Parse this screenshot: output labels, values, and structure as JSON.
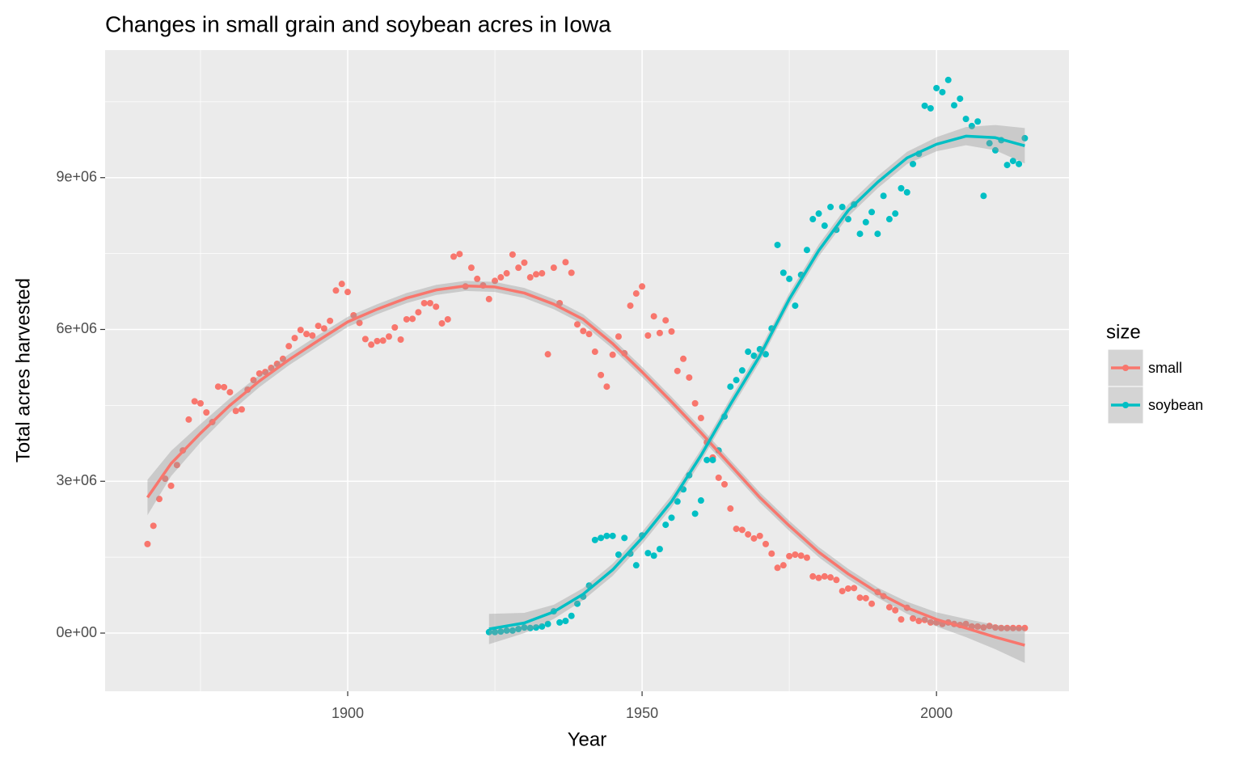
{
  "chart_data": {
    "type": "scatter",
    "title": "Changes in small grain and soybean acres in Iowa",
    "x_label": "Year",
    "y_label": "Total acres harvested",
    "legend_title": "size",
    "legend_position": "right",
    "grid": true,
    "xlim": [
      1858.8,
      2022.5
    ],
    "xticks": [
      1900,
      1950,
      2000
    ],
    "x_minor_ticks": [
      1875,
      1925,
      1975
    ],
    "ylim": [
      -1150000.0,
      11520000.0
    ],
    "yticks": [
      {
        "value": 0,
        "label": "0e+00"
      },
      {
        "value": 3000000.0,
        "label": "3e+06"
      },
      {
        "value": 6000000.0,
        "label": "6e+06"
      },
      {
        "value": 9000000.0,
        "label": "9e+06"
      }
    ],
    "y_minor_ticks": [
      1500000.0,
      4500000.0,
      7500000.0,
      10500000.0
    ],
    "series": [
      {
        "name": "small",
        "color": "#F8766D",
        "x": [
          1866,
          1867,
          1868,
          1869,
          1870,
          1871,
          1872,
          1873,
          1874,
          1875,
          1876,
          1877,
          1878,
          1879,
          1880,
          1881,
          1882,
          1883,
          1884,
          1885,
          1886,
          1887,
          1888,
          1889,
          1890,
          1891,
          1892,
          1893,
          1894,
          1895,
          1896,
          1897,
          1898,
          1899,
          1900,
          1901,
          1902,
          1903,
          1904,
          1905,
          1906,
          1907,
          1908,
          1909,
          1910,
          1911,
          1912,
          1913,
          1914,
          1915,
          1916,
          1917,
          1918,
          1919,
          1920,
          1921,
          1922,
          1923,
          1924,
          1925,
          1926,
          1927,
          1928,
          1929,
          1930,
          1931,
          1932,
          1933,
          1934,
          1935,
          1936,
          1937,
          1938,
          1939,
          1940,
          1941,
          1942,
          1943,
          1944,
          1945,
          1946,
          1947,
          1948,
          1949,
          1950,
          1951,
          1952,
          1953,
          1954,
          1955,
          1956,
          1957,
          1958,
          1959,
          1960,
          1961,
          1962,
          1963,
          1964,
          1965,
          1966,
          1967,
          1968,
          1969,
          1970,
          1971,
          1972,
          1973,
          1974,
          1975,
          1976,
          1977,
          1978,
          1979,
          1980,
          1981,
          1982,
          1983,
          1984,
          1985,
          1986,
          1987,
          1988,
          1989,
          1990,
          1991,
          1992,
          1993,
          1994,
          1995,
          1996,
          1997,
          1998,
          1999,
          2000,
          2001,
          2002,
          2003,
          2004,
          2005,
          2006,
          2007,
          2008,
          2009,
          2010,
          2011,
          2012,
          2013,
          2014,
          2015
        ],
        "values": [
          1760000.0,
          2120000.0,
          2650000.0,
          3050000.0,
          2910000.0,
          3320000.0,
          3610000.0,
          4220000.0,
          4580000.0,
          4540000.0,
          4360000.0,
          4170000.0,
          4870000.0,
          4860000.0,
          4760000.0,
          4390000.0,
          4420000.0,
          4810000.0,
          5000000.0,
          5130000.0,
          5160000.0,
          5240000.0,
          5320000.0,
          5420000.0,
          5670000.0,
          5830000.0,
          5990000.0,
          5910000.0,
          5880000.0,
          6070000.0,
          6020000.0,
          6170000.0,
          6770000.0,
          6900000.0,
          6740000.0,
          6280000.0,
          6130000.0,
          5810000.0,
          5700000.0,
          5770000.0,
          5780000.0,
          5860000.0,
          6040000.0,
          5800000.0,
          6200000.0,
          6210000.0,
          6340000.0,
          6520000.0,
          6520000.0,
          6450000.0,
          6120000.0,
          6200000.0,
          7440000.0,
          7490000.0,
          6850000.0,
          7220000.0,
          7000000.0,
          6870000.0,
          6600000.0,
          6960000.0,
          7030000.0,
          7110000.0,
          7480000.0,
          7220000.0,
          7320000.0,
          7030000.0,
          7090000.0,
          7110000.0,
          5510000.0,
          7220000.0,
          6520000.0,
          7330000.0,
          7120000.0,
          6100000.0,
          5970000.0,
          5910000.0,
          5560000.0,
          5100000.0,
          4870000.0,
          5500000.0,
          5860000.0,
          5530000.0,
          6470000.0,
          6710000.0,
          6850000.0,
          5880000.0,
          6260000.0,
          5930000.0,
          6180000.0,
          5960000.0,
          5180000.0,
          5420000.0,
          5050000.0,
          4540000.0,
          4250000.0,
          3770000.0,
          3470000.0,
          3070000.0,
          2940000.0,
          2460000.0,
          2060000.0,
          2040000.0,
          1950000.0,
          1870000.0,
          1920000.0,
          1760000.0,
          1570000.0,
          1290000.0,
          1340000.0,
          1520000.0,
          1550000.0,
          1530000.0,
          1490000.0,
          1120000.0,
          1090000.0,
          1120000.0,
          1100000.0,
          1050000.0,
          830000.0,
          880000.0,
          890000.0,
          700000.0,
          690000.0,
          580000.0,
          810000.0,
          730000.0,
          510000.0,
          450000.0,
          270000.0,
          500000.0,
          290000.0,
          240000.0,
          260000.0,
          210000.0,
          210000.0,
          180000.0,
          210000.0,
          180000.0,
          160000.0,
          180000.0,
          130000.0,
          130000.0,
          110000.0,
          140000.0,
          110000.0,
          100000.0,
          100000.0,
          100000.0,
          100000.0,
          100000.0
        ],
        "fit": {
          "x": [
            1866,
            1870,
            1875,
            1880,
            1885,
            1890,
            1895,
            1900,
            1905,
            1910,
            1915,
            1920,
            1925,
            1930,
            1935,
            1940,
            1945,
            1950,
            1955,
            1960,
            1965,
            1970,
            1975,
            1980,
            1985,
            1990,
            1995,
            2000,
            2005,
            2010,
            2015
          ],
          "values": [
            2680000.0,
            3350000.0,
            3950000.0,
            4500000.0,
            4980000.0,
            5400000.0,
            5780000.0,
            6150000.0,
            6400000.0,
            6620000.0,
            6780000.0,
            6860000.0,
            6840000.0,
            6720000.0,
            6500000.0,
            6200000.0,
            5720000.0,
            5160000.0,
            4570000.0,
            3960000.0,
            3320000.0,
            2680000.0,
            2120000.0,
            1600000.0,
            1170000.0,
            800000.0,
            500000.0,
            270000.0,
            100000.0,
            -80000.0,
            -240000.0
          ],
          "se": [
            350000.0,
            250000.0,
            180000.0,
            140000.0,
            120000.0,
            110000.0,
            110000.0,
            100000.0,
            100000.0,
            100000.0,
            100000.0,
            100000.0,
            100000.0,
            100000.0,
            100000.0,
            100000.0,
            100000.0,
            100000.0,
            100000.0,
            100000.0,
            100000.0,
            100000.0,
            100000.0,
            100000.0,
            100000.0,
            100000.0,
            120000.0,
            140000.0,
            180000.0,
            240000.0,
            350000.0
          ]
        }
      },
      {
        "name": "soybean",
        "color": "#00BFC4",
        "x": [
          1924,
          1925,
          1926,
          1927,
          1928,
          1929,
          1930,
          1931,
          1932,
          1933,
          1934,
          1935,
          1936,
          1937,
          1938,
          1939,
          1940,
          1941,
          1942,
          1943,
          1944,
          1945,
          1946,
          1947,
          1948,
          1949,
          1950,
          1951,
          1952,
          1953,
          1954,
          1955,
          1956,
          1957,
          1958,
          1959,
          1960,
          1961,
          1962,
          1963,
          1964,
          1965,
          1966,
          1967,
          1968,
          1969,
          1970,
          1971,
          1972,
          1973,
          1974,
          1975,
          1976,
          1977,
          1978,
          1979,
          1980,
          1981,
          1982,
          1983,
          1984,
          1985,
          1986,
          1987,
          1988,
          1989,
          1990,
          1991,
          1992,
          1993,
          1994,
          1995,
          1996,
          1997,
          1998,
          1999,
          2000,
          2001,
          2002,
          2003,
          2004,
          2005,
          2006,
          2007,
          2008,
          2009,
          2010,
          2011,
          2012,
          2013,
          2014,
          2015
        ],
        "values": [
          20000.0,
          20000.0,
          30000.0,
          50000.0,
          50000.0,
          80000.0,
          110000.0,
          100000.0,
          110000.0,
          130000.0,
          180000.0,
          430000.0,
          210000.0,
          240000.0,
          340000.0,
          580000.0,
          720000.0,
          940000.0,
          1840000.0,
          1880000.0,
          1920000.0,
          1920000.0,
          1550000.0,
          1880000.0,
          1570000.0,
          1340000.0,
          1930000.0,
          1580000.0,
          1530000.0,
          1660000.0,
          2140000.0,
          2280000.0,
          2600000.0,
          2840000.0,
          3120000.0,
          2360000.0,
          2620000.0,
          3420000.0,
          3420000.0,
          3610000.0,
          4280000.0,
          4870000.0,
          5000000.0,
          5190000.0,
          5560000.0,
          5480000.0,
          5610000.0,
          5510000.0,
          6020000.0,
          7670000.0,
          7120000.0,
          7000000.0,
          6470000.0,
          7080000.0,
          7570000.0,
          8180000.0,
          8290000.0,
          8050000.0,
          8420000.0,
          7970000.0,
          8420000.0,
          8180000.0,
          8470000.0,
          7890000.0,
          8120000.0,
          8320000.0,
          7890000.0,
          8640000.0,
          8180000.0,
          8290000.0,
          8790000.0,
          8710000.0,
          9270000.0,
          9470000.0,
          10420000.0,
          10370000.0,
          10770000.0,
          10690000.0,
          10930000.0,
          10430000.0,
          10560000.0,
          10160000.0,
          10020000.0,
          10110000.0,
          8640000.0,
          9680000.0,
          9540000.0,
          9740000.0,
          9250000.0,
          9330000.0,
          9270000.0,
          9780000.0
        ],
        "fit": {
          "x": [
            1924,
            1930,
            1935,
            1940,
            1945,
            1950,
            1955,
            1960,
            1965,
            1970,
            1975,
            1980,
            1985,
            1990,
            1995,
            2000,
            2005,
            2010,
            2015
          ],
          "values": [
            80000.0,
            200000.0,
            420000.0,
            770000.0,
            1250000.0,
            1880000.0,
            2600000.0,
            3510000.0,
            4520000.0,
            5480000.0,
            6600000.0,
            7560000.0,
            8350000.0,
            8910000.0,
            9390000.0,
            9660000.0,
            9820000.0,
            9790000.0,
            9630000.0
          ],
          "se": [
            300000.0,
            200000.0,
            140000.0,
            120000.0,
            120000.0,
            120000.0,
            120000.0,
            120000.0,
            120000.0,
            120000.0,
            120000.0,
            120000.0,
            120000.0,
            120000.0,
            120000.0,
            140000.0,
            180000.0,
            250000.0,
            350000.0
          ]
        }
      }
    ]
  }
}
